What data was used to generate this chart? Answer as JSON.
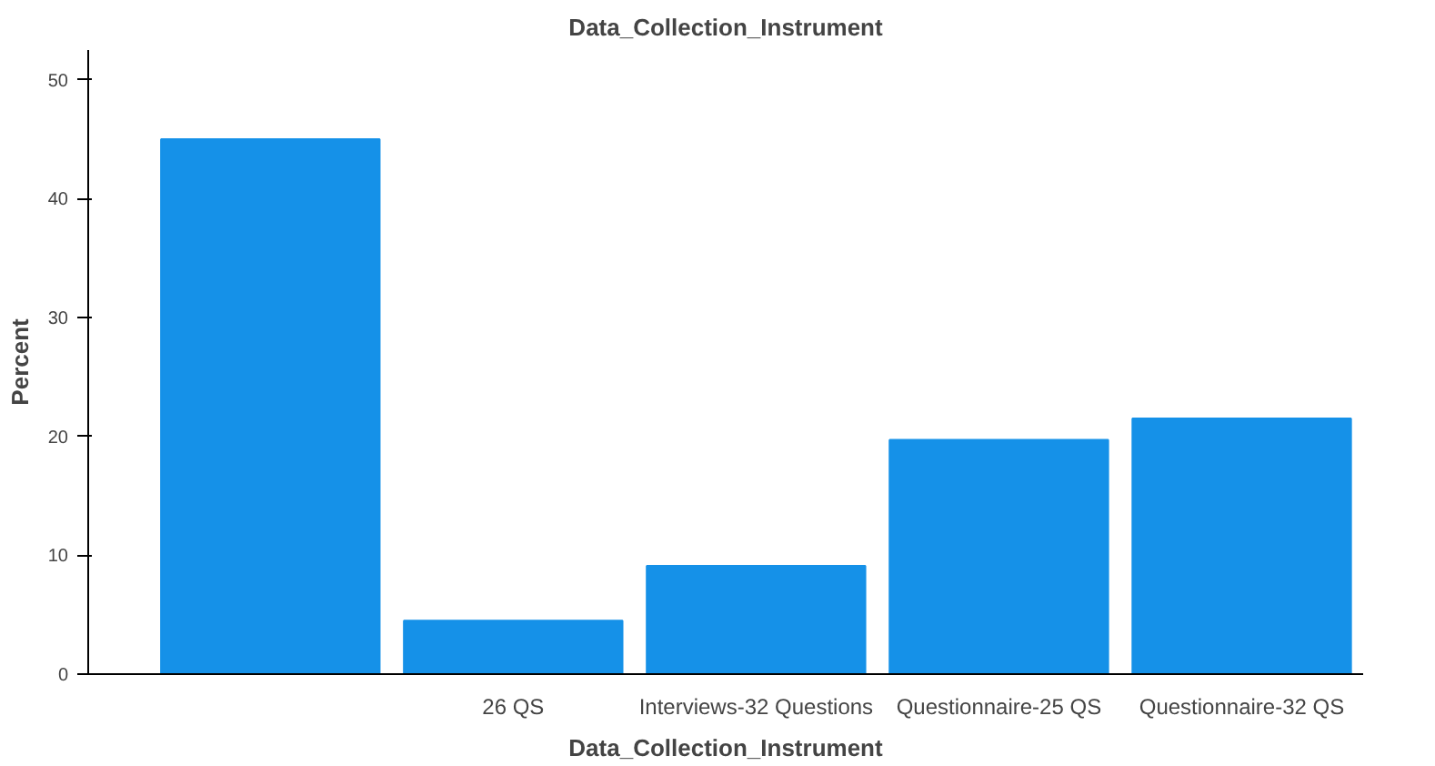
{
  "chart_data": {
    "type": "bar",
    "title": "Data_Collection_Instrument",
    "xlabel": "Data_Collection_Instrument",
    "ylabel": "Percent",
    "categories": [
      null,
      "26 QS",
      "Interviews-32 Questions",
      "Questionnaire-25 QS",
      "Questionnaire-32 QS"
    ],
    "values": [
      45.0,
      4.5,
      9.1,
      19.7,
      21.5
    ],
    "color": "#1591e8",
    "ylim": [
      0,
      52.5
    ],
    "yticks": [
      0,
      10,
      20,
      30,
      40,
      50
    ],
    "grid": false
  }
}
